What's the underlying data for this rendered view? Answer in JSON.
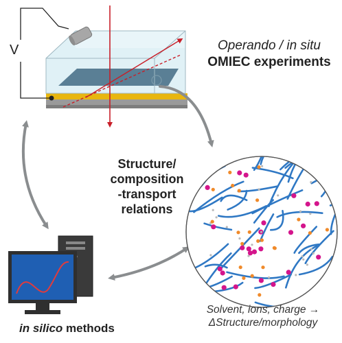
{
  "top_label": {
    "line1_italic": "Operando / in situ",
    "line2_bold": "OMIEC experiments"
  },
  "voltage_label": "V",
  "center_label": {
    "lines": [
      "Structure/",
      "composition",
      "-transport",
      "relations"
    ]
  },
  "circle_caption": {
    "line1": "Solvent, ions, charge →",
    "line2": "ΔStructure/morphology"
  },
  "bottom_label": {
    "italic": "in silico",
    "bold": " methods"
  },
  "colors": {
    "arrow": "#8a8d8f",
    "chain": "#2f78c4",
    "ion_magenta": "#d4158c",
    "ion_orange": "#f08a2a",
    "electrode": "#e8b60f",
    "film": "#5a7f95",
    "electrolyte": "#cfe6ef",
    "beam": "#c81e28",
    "screen": "#1f5fb3"
  }
}
